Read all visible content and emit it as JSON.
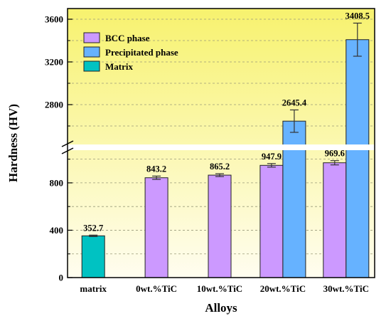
{
  "chart_data": {
    "type": "bar",
    "xlabel": "Alloys",
    "ylabel": "Hardness (HV)",
    "categories": [
      "matrix",
      "0wt.%TiC",
      "10wt.%TiC",
      "20wt.%TiC",
      "30wt.%TiC"
    ],
    "series": [
      {
        "name": "BCC phase",
        "color": "#cc99ff",
        "values": [
          null,
          843.2,
          865.2,
          947.9,
          969.6
        ],
        "errors": [
          null,
          14,
          12,
          15,
          18
        ],
        "labels": [
          null,
          "843.2",
          "865.2",
          "947.9",
          "969.6"
        ]
      },
      {
        "name": "Precipitated phase",
        "color": "#66b2ff",
        "values": [
          null,
          null,
          null,
          2645.4,
          3408.5
        ],
        "errors": [
          null,
          null,
          null,
          105,
          155
        ],
        "labels": [
          null,
          null,
          null,
          "2645.4",
          "3408.5"
        ]
      },
      {
        "name": "Matrix",
        "color": "#00c2c2",
        "values": [
          352.7,
          null,
          null,
          null,
          null
        ],
        "errors": [
          6,
          null,
          null,
          null,
          null
        ],
        "labels": [
          "352.7",
          null,
          null,
          null,
          null
        ]
      }
    ],
    "y_axis_break": {
      "lower_segment": [
        0,
        1100
      ],
      "upper_segment": [
        2400,
        3700
      ]
    },
    "yticks": [
      0,
      400,
      800,
      2800,
      3200,
      3600
    ],
    "grid": "dashed horizontal",
    "legend": "top-left",
    "background": "yellow gradient"
  }
}
